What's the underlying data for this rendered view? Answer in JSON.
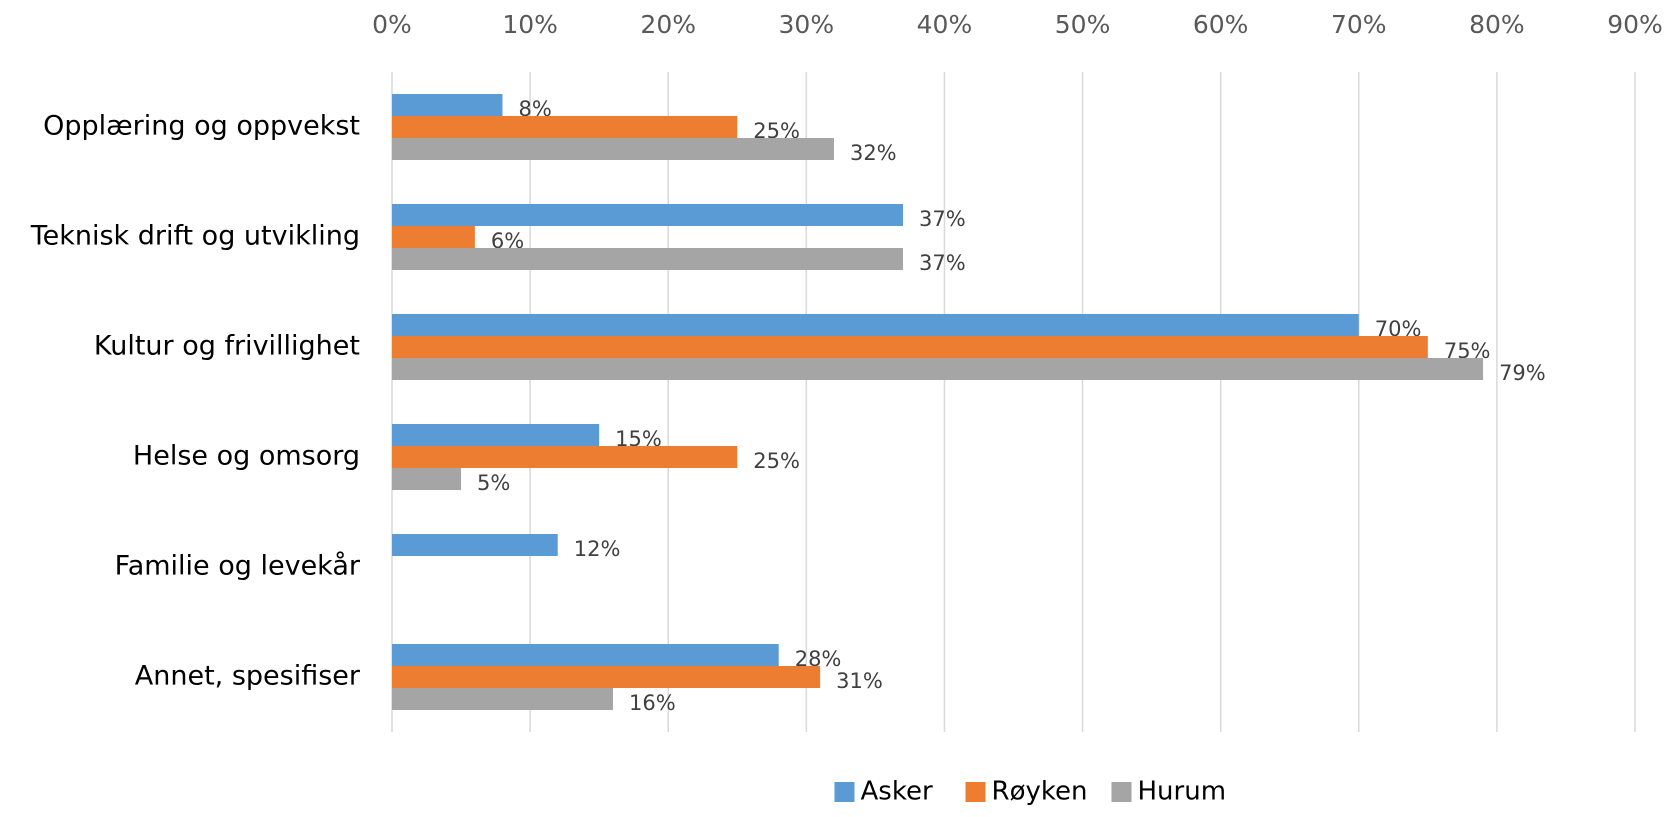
{
  "chart_data": {
    "type": "hbar",
    "categories": [
      "Opplæring og oppvekst",
      "Teknisk drift og utvikling",
      "Kultur og frivillighet",
      "Helse og omsorg",
      "Familie og levekår",
      "Annet, spesifiser"
    ],
    "series": [
      {
        "name": "Asker",
        "color": "#5b9bd5",
        "values": [
          8,
          37,
          70,
          15,
          12,
          28
        ],
        "value_labels": [
          "8%",
          "37%",
          "70%",
          "15%",
          "12%",
          "28%"
        ]
      },
      {
        "name": "Røyken",
        "color": "#ed7d31",
        "values": [
          25,
          6,
          75,
          25,
          null,
          31
        ],
        "value_labels": [
          "25%",
          "6%",
          "75%",
          "25%",
          null,
          "31%"
        ]
      },
      {
        "name": "Hurum",
        "color": "#a5a5a5",
        "values": [
          32,
          37,
          79,
          5,
          null,
          16
        ],
        "value_labels": [
          "32%",
          "37%",
          "79%",
          "5%",
          null,
          "16%"
        ]
      }
    ],
    "xlim": [
      0,
      90
    ],
    "xticks": [
      {
        "value": 0,
        "label": "0%"
      },
      {
        "value": 10,
        "label": "10%"
      },
      {
        "value": 20,
        "label": "20%"
      },
      {
        "value": 30,
        "label": "30%"
      },
      {
        "value": 40,
        "label": "40%"
      },
      {
        "value": 50,
        "label": "50%"
      },
      {
        "value": 60,
        "label": "60%"
      },
      {
        "value": 70,
        "label": "70%"
      },
      {
        "value": 80,
        "label": "80%"
      },
      {
        "value": 90,
        "label": "90%"
      }
    ],
    "grid": true,
    "legend": "bottom"
  }
}
